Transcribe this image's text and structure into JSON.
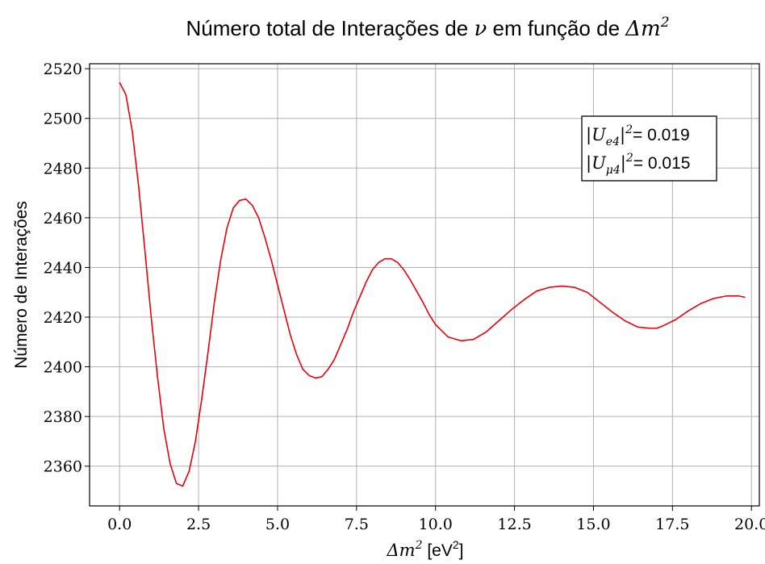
{
  "chart_data": {
    "type": "line",
    "title_prefix": "Número total de Interações de ",
    "title_nu": "ν",
    "title_middle": " em função de ",
    "title_dm": "Δm",
    "title_dm_exp": "2",
    "xlabel_main": "Δm",
    "xlabel_exp": "2",
    "xlabel_unit_prefix": " [eV",
    "xlabel_unit_exp": "2",
    "xlabel_unit_suffix": "]",
    "ylabel": "Número de Interações",
    "xlim": [
      -0.95,
      20.25
    ],
    "ylim": [
      2344,
      2522
    ],
    "xticks": [
      0.0,
      2.5,
      5.0,
      7.5,
      10.0,
      12.5,
      15.0,
      17.5,
      20.0
    ],
    "xtick_labels": [
      "0.0",
      "2.5",
      "5.0",
      "7.5",
      "10.0",
      "12.5",
      "15.0",
      "17.5",
      "20.0"
    ],
    "yticks": [
      2360,
      2380,
      2400,
      2420,
      2440,
      2460,
      2480,
      2500,
      2520
    ],
    "ytick_labels": [
      "2360",
      "2380",
      "2400",
      "2420",
      "2440",
      "2460",
      "2480",
      "2500",
      "2520"
    ],
    "grid": true,
    "legend_placement": "top-right",
    "annotation": {
      "line1_sym": "|U",
      "line1_sub": "e4",
      "line1_close": "|",
      "line1_exp": "2",
      "line1_value": "= 0.019",
      "line2_sym": "|U",
      "line2_sub": "μ4",
      "line2_close": "|",
      "line2_exp": "2",
      "line2_value": "= 0.015"
    },
    "series": [
      {
        "color": "#e8000b",
        "x": [
          0.0,
          0.2,
          0.4,
          0.6,
          0.8,
          1.0,
          1.2,
          1.4,
          1.6,
          1.8,
          2.0,
          2.2,
          2.4,
          2.6,
          2.8,
          3.0,
          3.2,
          3.4,
          3.6,
          3.8,
          4.0,
          4.2,
          4.4,
          4.6,
          4.8,
          5.0,
          5.2,
          5.4,
          5.6,
          5.8,
          6.0,
          6.2,
          6.4,
          6.6,
          6.8,
          7.0,
          7.2,
          7.4,
          7.6,
          7.8,
          8.0,
          8.2,
          8.4,
          8.6,
          8.8,
          9.0,
          9.2,
          9.4,
          9.6,
          9.8,
          10.0,
          10.4,
          10.8,
          11.2,
          11.6,
          12.0,
          12.4,
          12.8,
          13.2,
          13.6,
          14.0,
          14.4,
          14.8,
          15.2,
          15.6,
          16.0,
          16.4,
          16.8,
          17.0,
          17.2,
          17.6,
          18.0,
          18.4,
          18.8,
          19.2,
          19.6,
          19.8
        ],
        "y": [
          2514.5,
          2509.5,
          2495,
          2473,
          2447,
          2420,
          2396,
          2375,
          2361,
          2353,
          2352,
          2358,
          2370,
          2387,
          2406,
          2426,
          2443,
          2456,
          2464,
          2467,
          2467.5,
          2465,
          2460,
          2452,
          2443,
          2433,
          2423,
          2413,
          2405,
          2399,
          2396.5,
          2395.5,
          2396,
          2399,
          2403,
          2409,
          2415,
          2422,
          2428,
          2434,
          2439,
          2442,
          2443.5,
          2443.5,
          2442,
          2439,
          2435,
          2430.5,
          2426,
          2421,
          2417,
          2412,
          2410.5,
          2411,
          2414,
          2418.5,
          2423,
          2427,
          2430.5,
          2432,
          2432.5,
          2432,
          2430,
          2426,
          2422,
          2418.5,
          2416,
          2415.5,
          2415.5,
          2416.5,
          2419,
          2422.5,
          2425.5,
          2427.5,
          2428.5,
          2428.5,
          2428
        ]
      }
    ]
  }
}
